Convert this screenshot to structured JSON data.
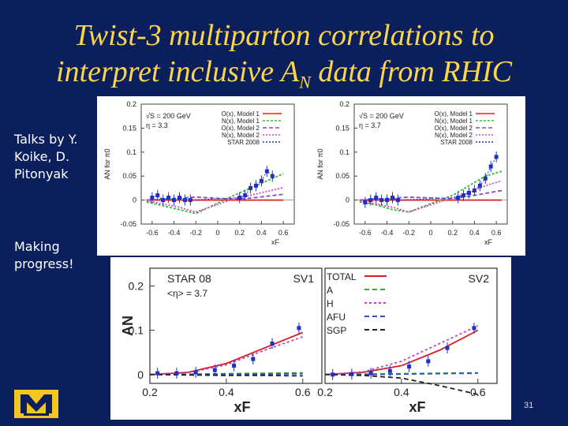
{
  "slide": {
    "title_line1": "Twist-3 multiparton correlations to",
    "title_line2_pre": "interpret inclusive A",
    "title_line2_sub": "N",
    "title_line2_post": " data from RHIC",
    "bullet1_line1": "Talks by Y.",
    "bullet1_line2": "Koike, D.",
    "bullet1_line3": "Pitonyak",
    "bullet2_line1": "Making",
    "bullet2_line2": "progress!",
    "page_number": "31"
  },
  "chart_data": [
    {
      "type": "line",
      "panel": "top-left",
      "annotations": [
        "√S = 200 GeV",
        "η = 3.3"
      ],
      "xlabel": "xF",
      "ylabel": "AN for π0",
      "xlim": [
        -0.7,
        0.7
      ],
      "ylim": [
        -0.05,
        0.2
      ],
      "xticks": [
        "-0.6",
        "-0.4",
        "-0.2",
        "0",
        "0.2",
        "0.4",
        "0.6"
      ],
      "yticks": [
        "0.2",
        "0.15",
        "0.1",
        "0.05",
        "0",
        "-0.05"
      ],
      "legend": [
        "O(x), Model 1",
        "N(x), Model 1",
        "O(x), Model 2",
        "N(x), Model 2",
        "STAR 2008"
      ],
      "series": [
        {
          "name": "O(x), Model 1",
          "color": "#e02020",
          "dash": "",
          "x": [
            -0.65,
            -0.5,
            -0.35,
            -0.2,
            0.15,
            0.3,
            0.45,
            0.6
          ],
          "y": [
            0,
            0,
            0,
            0,
            0,
            0,
            0,
            0
          ]
        },
        {
          "name": "N(x), Model 1",
          "color": "#33bb33",
          "dash": "3,2",
          "x": [
            -0.65,
            -0.5,
            -0.35,
            -0.2,
            0.15,
            0.3,
            0.45,
            0.6
          ],
          "y": [
            -0.004,
            -0.012,
            -0.02,
            -0.028,
            0.01,
            0.025,
            0.04,
            0.055
          ]
        },
        {
          "name": "O(x), Model 2",
          "color": "#9a40c0",
          "dash": "5,3",
          "x": [
            -0.65,
            -0.5,
            -0.35,
            -0.2,
            0.15,
            0.3,
            0.45,
            0.6
          ],
          "y": [
            0,
            0.002,
            0.004,
            0.006,
            0.002,
            0.004,
            0.008,
            0.012
          ]
        },
        {
          "name": "N(x), Model 2",
          "color": "#e040c0",
          "dash": "2,2",
          "x": [
            -0.65,
            -0.5,
            -0.35,
            -0.2,
            0.15,
            0.3,
            0.45,
            0.6
          ],
          "y": [
            -0.002,
            -0.008,
            -0.015,
            -0.025,
            0.003,
            0.01,
            0.018,
            0.026
          ]
        },
        {
          "name": "STAR 2008",
          "color": "#2030c0",
          "dash": "2,2",
          "markers": true,
          "x": [
            -0.6,
            -0.55,
            -0.5,
            -0.45,
            -0.4,
            -0.35,
            -0.3,
            -0.25,
            0.2,
            0.25,
            0.3,
            0.35,
            0.4,
            0.45,
            0.5
          ],
          "y": [
            0.005,
            0.01,
            0.0,
            0.005,
            0.0,
            0.005,
            0.0,
            0.0,
            0.005,
            0.01,
            0.025,
            0.03,
            0.04,
            0.06,
            0.05
          ]
        }
      ]
    },
    {
      "type": "line",
      "panel": "top-right",
      "annotations": [
        "√S = 200 GeV",
        "η = 3.7"
      ],
      "xlabel": "xF",
      "ylabel": "AN for π0",
      "xlim": [
        -0.7,
        0.7
      ],
      "ylim": [
        -0.05,
        0.2
      ],
      "xticks": [
        "-0.6",
        "-0.4",
        "-0.2",
        "0",
        "0.2",
        "0.4",
        "0.6"
      ],
      "yticks": [
        "0.2",
        "0.15",
        "0.1",
        "0.05",
        "0",
        "-0.05"
      ],
      "legend": [
        "O(x), Model 1",
        "N(x), Model 1",
        "O(x), Model 2",
        "N(x), Model 2",
        "STAR 2008"
      ],
      "series": [
        {
          "name": "O(x), Model 1",
          "color": "#e02020",
          "dash": "",
          "x": [
            -0.65,
            -0.5,
            -0.35,
            -0.2,
            0.2,
            0.35,
            0.5,
            0.65
          ],
          "y": [
            0,
            0,
            0,
            0,
            0,
            0,
            0,
            0
          ]
        },
        {
          "name": "N(x), Model 1",
          "color": "#33bb33",
          "dash": "3,2",
          "x": [
            -0.65,
            -0.5,
            -0.35,
            -0.2,
            0.2,
            0.35,
            0.5,
            0.65
          ],
          "y": [
            -0.004,
            -0.01,
            -0.02,
            -0.025,
            0.01,
            0.03,
            0.05,
            0.06
          ]
        },
        {
          "name": "O(x), Model 2",
          "color": "#9a40c0",
          "dash": "5,3",
          "x": [
            -0.65,
            -0.5,
            -0.35,
            -0.2,
            0.2,
            0.35,
            0.5,
            0.65
          ],
          "y": [
            0,
            0.002,
            0.004,
            0.006,
            0.003,
            0.008,
            0.014,
            0.02
          ]
        },
        {
          "name": "N(x), Model 2",
          "color": "#e040c0",
          "dash": "2,2",
          "x": [
            -0.65,
            -0.5,
            -0.35,
            -0.2,
            0.2,
            0.35,
            0.5,
            0.65
          ],
          "y": [
            -0.002,
            -0.008,
            -0.015,
            -0.025,
            0.005,
            0.015,
            0.03,
            0.04
          ]
        },
        {
          "name": "STAR 2008",
          "color": "#2030c0",
          "dash": "2,2",
          "markers": true,
          "x": [
            -0.6,
            -0.55,
            -0.5,
            -0.45,
            -0.4,
            -0.35,
            -0.3,
            0.25,
            0.3,
            0.35,
            0.4,
            0.45,
            0.5,
            0.55,
            0.6
          ],
          "y": [
            -0.005,
            0.0,
            0.005,
            0.0,
            0.0,
            0.005,
            0.0,
            0.005,
            0.01,
            0.015,
            0.02,
            0.03,
            0.045,
            0.07,
            0.09
          ]
        }
      ]
    },
    {
      "type": "line",
      "panel": "bottom",
      "annotations": [
        "STAR 08",
        "<η> = 3.7"
      ],
      "panel_labels": [
        "SV1",
        "SV2"
      ],
      "xlabel": "xF",
      "ylabel": "AN",
      "xlim": [
        0.2,
        0.65
      ],
      "ylim": [
        -0.02,
        0.24
      ],
      "xticks": [
        "0.2",
        "0.4",
        "0.6"
      ],
      "yticks": [
        "0.2",
        "0.1",
        "0"
      ],
      "legend": [
        "TOTAL",
        "A",
        "H",
        "AFU",
        "SGP"
      ],
      "series": [
        {
          "name": "TOTAL",
          "color": "#d42020",
          "dash": "",
          "x": [
            0.2,
            0.3,
            0.4,
            0.5,
            0.6
          ],
          "y": [
            0.0,
            0.005,
            0.025,
            0.06,
            0.095
          ]
        },
        {
          "name": "A",
          "color": "#30b040",
          "dash": "6,4",
          "x": [
            0.2,
            0.3,
            0.4,
            0.5,
            0.6
          ],
          "y": [
            0.0,
            0.001,
            0.002,
            0.003,
            0.004
          ]
        },
        {
          "name": "H",
          "color": "#c040c0",
          "dash": "3,3",
          "x": [
            0.2,
            0.3,
            0.4,
            0.5,
            0.6
          ],
          "y": [
            0.0,
            0.004,
            0.022,
            0.055,
            0.085
          ]
        },
        {
          "name": "AFU",
          "color": "#3050c0",
          "dash": "6,4",
          "x": [
            0.2,
            0.3,
            0.4,
            0.5,
            0.6
          ],
          "y": [
            0.0,
            0.0,
            0.001,
            0.001,
            0.002
          ]
        },
        {
          "name": "SGP",
          "color": "#222222",
          "dash": "6,4",
          "x": [
            0.2,
            0.3,
            0.4,
            0.5,
            0.6
          ],
          "y": [
            0.0,
            -0.001,
            -0.002,
            -0.002,
            -0.003
          ]
        },
        {
          "name": "STAR 08",
          "color": "#2030c0",
          "markers": true,
          "x": [
            0.22,
            0.27,
            0.32,
            0.37,
            0.42,
            0.47,
            0.52,
            0.59
          ],
          "y": [
            0.003,
            0.003,
            0.005,
            0.01,
            0.02,
            0.035,
            0.07,
            0.105
          ]
        }
      ],
      "series_right": [
        {
          "name": "TOTAL",
          "color": "#d42020",
          "dash": "",
          "x": [
            0.2,
            0.3,
            0.4,
            0.5,
            0.6
          ],
          "y": [
            0.0,
            0.005,
            0.02,
            0.055,
            0.1
          ]
        },
        {
          "name": "A",
          "color": "#30b040",
          "dash": "6,4",
          "x": [
            0.2,
            0.3,
            0.4,
            0.5,
            0.6
          ],
          "y": [
            0.0,
            0.001,
            0.002,
            0.003,
            0.004
          ]
        },
        {
          "name": "H",
          "color": "#c040c0",
          "dash": "3,3",
          "x": [
            0.2,
            0.3,
            0.4,
            0.5,
            0.6
          ],
          "y": [
            0.0,
            0.006,
            0.03,
            0.07,
            0.11
          ]
        },
        {
          "name": "AFU",
          "color": "#3050c0",
          "dash": "6,4",
          "x": [
            0.2,
            0.3,
            0.4,
            0.5,
            0.6
          ],
          "y": [
            0.0,
            0.0,
            0.001,
            0.002,
            0.003
          ]
        },
        {
          "name": "SGP",
          "color": "#222222",
          "dash": "6,4",
          "x": [
            0.2,
            0.3,
            0.4,
            0.5,
            0.6
          ],
          "y": [
            0.0,
            -0.002,
            -0.008,
            -0.025,
            -0.045
          ]
        },
        {
          "name": "STAR 08",
          "color": "#2030c0",
          "markers": true,
          "x": [
            0.22,
            0.27,
            0.32,
            0.37,
            0.42,
            0.47,
            0.52,
            0.59
          ],
          "y": [
            0.0,
            0.001,
            0.003,
            0.008,
            0.018,
            0.03,
            0.06,
            0.105
          ]
        }
      ]
    }
  ]
}
